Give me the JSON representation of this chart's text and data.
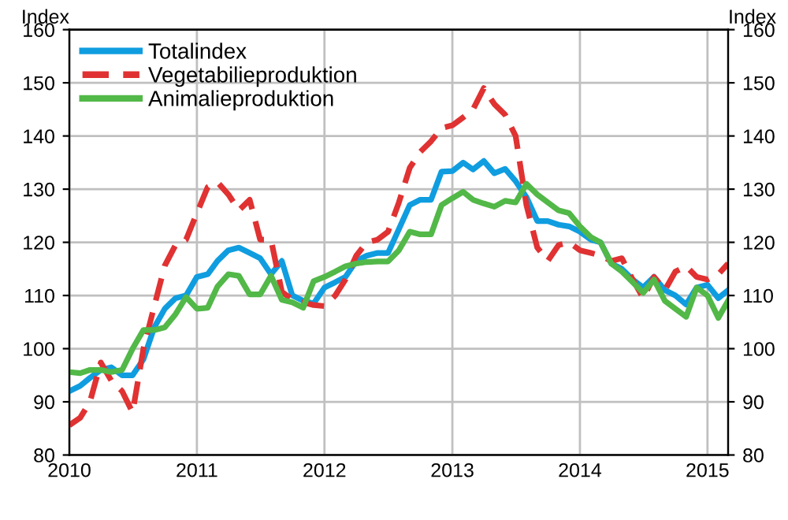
{
  "chart_data": {
    "type": "line",
    "ylabel": "Index",
    "y2label": "Index",
    "x": [
      "2010-01",
      "2010-02",
      "2010-03",
      "2010-04",
      "2010-05",
      "2010-06",
      "2010-07",
      "2010-08",
      "2010-09",
      "2010-10",
      "2010-11",
      "2010-12",
      "2011-01",
      "2011-02",
      "2011-03",
      "2011-04",
      "2011-05",
      "2011-06",
      "2011-07",
      "2011-08",
      "2011-09",
      "2011-10",
      "2011-11",
      "2011-12",
      "2012-01",
      "2012-02",
      "2012-03",
      "2012-04",
      "2012-05",
      "2012-06",
      "2012-07",
      "2012-08",
      "2012-09",
      "2012-10",
      "2012-11",
      "2012-12",
      "2013-01",
      "2013-02",
      "2013-03",
      "2013-04",
      "2013-05",
      "2013-06",
      "2013-07",
      "2013-08",
      "2013-09",
      "2013-10",
      "2013-11",
      "2013-12",
      "2014-01",
      "2014-02",
      "2014-03",
      "2014-04",
      "2014-05",
      "2014-06",
      "2014-07",
      "2014-08",
      "2014-09",
      "2014-10",
      "2014-11",
      "2014-12",
      "2015-01",
      "2015-02",
      "2015-03"
    ],
    "series": [
      {
        "name": "Totalindex",
        "color": "#0f9de0",
        "line_style": "solid",
        "values": [
          92,
          93,
          94.5,
          96,
          96.5,
          95,
          95,
          98,
          104,
          107.5,
          109.5,
          110,
          113.5,
          114,
          116.5,
          118.5,
          119,
          118,
          117,
          114,
          116.5,
          110,
          109,
          108.5,
          111.5,
          112.5,
          113.5,
          116.5,
          117.5,
          118,
          118,
          122.5,
          127,
          128,
          128,
          133.3,
          133.4,
          135,
          133.7,
          135.3,
          133,
          133.8,
          131.5,
          128.5,
          124,
          124,
          123.3,
          123,
          122,
          120.5,
          120,
          116,
          115,
          113,
          111.5,
          113.5,
          111,
          110,
          108.3,
          111.5,
          112,
          109.5,
          111
        ]
      },
      {
        "name": "Vegetabilieproduktion",
        "color": "#e03232",
        "line_style": "dashed",
        "values": [
          85.6,
          87,
          90,
          97.4,
          94,
          92,
          88,
          100,
          108,
          115.6,
          119.5,
          120.5,
          125.5,
          130.4,
          131.3,
          129,
          126,
          128,
          120.5,
          120.5,
          110.7,
          109.2,
          108.7,
          108.2,
          108,
          110,
          113,
          117.5,
          120,
          120.5,
          122,
          127.5,
          134,
          137,
          139,
          141.5,
          142,
          143.5,
          145,
          149,
          146,
          144,
          140,
          127,
          119,
          116.5,
          119.5,
          120,
          118.5,
          118,
          117.5,
          116.5,
          117,
          113,
          109.5,
          113.5,
          111,
          114.5,
          115.5,
          113.5,
          113,
          114,
          116
        ]
      },
      {
        "name": "Animalieproduktion",
        "color": "#52b848",
        "line_style": "solid",
        "values": [
          95.6,
          95.4,
          96,
          96,
          95.6,
          96,
          100,
          103.5,
          103.5,
          104,
          106.5,
          109.7,
          107.5,
          107.7,
          111.7,
          114,
          113.7,
          110.2,
          110.2,
          113.7,
          109.2,
          108.7,
          107.7,
          112.7,
          113.5,
          114.5,
          115.5,
          116,
          116.3,
          116.4,
          116.4,
          118.5,
          122,
          121.5,
          121.5,
          127,
          128.3,
          129.5,
          128,
          127.3,
          126.7,
          127.8,
          127.5,
          131,
          129,
          127.5,
          126,
          125.5,
          123,
          121,
          120,
          116,
          114.5,
          112.5,
          110.5,
          113,
          109,
          107.5,
          106,
          111.5,
          110,
          105.8,
          109
        ]
      }
    ],
    "xlim": [
      "2010-01",
      "2015-03"
    ],
    "xticks": [
      "2010",
      "2011",
      "2012",
      "2013",
      "2014",
      "2015"
    ],
    "ylim": [
      80,
      160
    ],
    "yticks": [
      80,
      90,
      100,
      110,
      120,
      130,
      140,
      150,
      160
    ],
    "y2lim": [
      80,
      160
    ],
    "y2ticks": [
      80,
      90,
      100,
      110,
      120,
      130,
      140,
      150,
      160
    ],
    "grid": true,
    "legend": "top left",
    "marker": "none"
  }
}
